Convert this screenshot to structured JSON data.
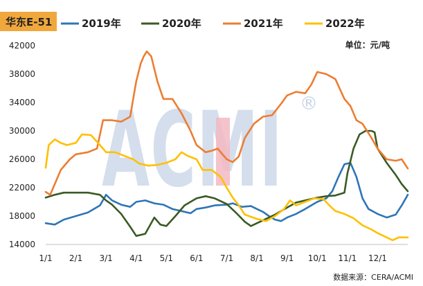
{
  "chart_data": {
    "type": "line",
    "title": "华东E-51",
    "unit_label": "单位：元/吨",
    "source_label": "数据来源：CERA/ACMI",
    "watermark": "ACMI",
    "watermark_mark": "®",
    "ylim": [
      14000,
      42000
    ],
    "yticks": [
      14000,
      18000,
      22000,
      26000,
      30000,
      34000,
      38000,
      42000
    ],
    "ytick_labels": [
      "14000",
      "18000",
      "22000",
      "26000",
      "30000",
      "34000",
      "38000",
      "42000"
    ],
    "xlim": [
      1,
      13
    ],
    "x_ticks": [
      1,
      2,
      3,
      4,
      5,
      6,
      7,
      8,
      9,
      10,
      11,
      12
    ],
    "x_tick_labels": [
      "1/1",
      "2/1",
      "3/1",
      "4/1",
      "5/1",
      "6/1",
      "7/1",
      "8/1",
      "9/1",
      "10/1",
      "11/1",
      "12/1"
    ],
    "legend_position": "top",
    "series": [
      {
        "name": "2019年",
        "color": "#2e75b6",
        "points": [
          [
            1,
            17000
          ],
          [
            1.3,
            16800
          ],
          [
            1.6,
            17500
          ],
          [
            2,
            18000
          ],
          [
            2.4,
            18500
          ],
          [
            2.8,
            19500
          ],
          [
            3,
            21000
          ],
          [
            3.2,
            20200
          ],
          [
            3.5,
            19600
          ],
          [
            3.8,
            19300
          ],
          [
            4,
            20000
          ],
          [
            4.3,
            20200
          ],
          [
            4.6,
            19800
          ],
          [
            4.9,
            19600
          ],
          [
            5.2,
            19000
          ],
          [
            5.5,
            18700
          ],
          [
            5.8,
            18400
          ],
          [
            6,
            19000
          ],
          [
            6.3,
            19200
          ],
          [
            6.6,
            19500
          ],
          [
            7,
            19600
          ],
          [
            7.2,
            19800
          ],
          [
            7.5,
            19300
          ],
          [
            7.8,
            19400
          ],
          [
            8,
            19000
          ],
          [
            8.2,
            18600
          ],
          [
            8.4,
            18000
          ],
          [
            8.6,
            17500
          ],
          [
            8.8,
            17300
          ],
          [
            9,
            17800
          ],
          [
            9.3,
            18300
          ],
          [
            9.6,
            19000
          ],
          [
            10,
            20000
          ],
          [
            10.3,
            20500
          ],
          [
            10.5,
            21500
          ],
          [
            10.7,
            23500
          ],
          [
            10.9,
            25300
          ],
          [
            11.1,
            25500
          ],
          [
            11.3,
            23500
          ],
          [
            11.5,
            20500
          ],
          [
            11.7,
            19000
          ],
          [
            12,
            18300
          ],
          [
            12.3,
            17800
          ],
          [
            12.6,
            18200
          ],
          [
            12.8,
            19500
          ],
          [
            13,
            21000
          ]
        ]
      },
      {
        "name": "2020年",
        "color": "#3a5a24",
        "points": [
          [
            1,
            20600
          ],
          [
            1.3,
            21000
          ],
          [
            1.6,
            21300
          ],
          [
            2,
            21300
          ],
          [
            2.4,
            21300
          ],
          [
            2.8,
            21000
          ],
          [
            3,
            20200
          ],
          [
            3.2,
            19600
          ],
          [
            3.5,
            18300
          ],
          [
            3.8,
            16500
          ],
          [
            4,
            15200
          ],
          [
            4.3,
            15500
          ],
          [
            4.6,
            17800
          ],
          [
            4.8,
            16800
          ],
          [
            5,
            16600
          ],
          [
            5.3,
            18000
          ],
          [
            5.6,
            19500
          ],
          [
            5.8,
            20000
          ],
          [
            6,
            20500
          ],
          [
            6.3,
            20800
          ],
          [
            6.6,
            20500
          ],
          [
            7,
            19700
          ],
          [
            7.3,
            18500
          ],
          [
            7.6,
            17200
          ],
          [
            7.8,
            16600
          ],
          [
            8,
            17000
          ],
          [
            8.3,
            17600
          ],
          [
            8.6,
            18200
          ],
          [
            9,
            19200
          ],
          [
            9.3,
            19900
          ],
          [
            9.6,
            20200
          ],
          [
            10,
            20600
          ],
          [
            10.3,
            20800
          ],
          [
            10.6,
            20900
          ],
          [
            10.9,
            21300
          ],
          [
            11,
            24000
          ],
          [
            11.2,
            27500
          ],
          [
            11.4,
            29500
          ],
          [
            11.6,
            30000
          ],
          [
            11.8,
            30000
          ],
          [
            11.9,
            29800
          ],
          [
            12,
            27500
          ],
          [
            12.3,
            25500
          ],
          [
            12.6,
            23800
          ],
          [
            12.8,
            22500
          ],
          [
            13,
            21500
          ]
        ]
      },
      {
        "name": "2021年",
        "color": "#ed7d31",
        "points": [
          [
            1,
            21400
          ],
          [
            1.15,
            21000
          ],
          [
            1.3,
            22500
          ],
          [
            1.5,
            24500
          ],
          [
            1.8,
            26000
          ],
          [
            2,
            26700
          ],
          [
            2.4,
            27000
          ],
          [
            2.7,
            27500
          ],
          [
            2.9,
            31500
          ],
          [
            3.2,
            31500
          ],
          [
            3.5,
            31300
          ],
          [
            3.8,
            32000
          ],
          [
            3.9,
            34500
          ],
          [
            4,
            37000
          ],
          [
            4.15,
            39500
          ],
          [
            4.25,
            40500
          ],
          [
            4.35,
            41200
          ],
          [
            4.5,
            40500
          ],
          [
            4.7,
            37000
          ],
          [
            4.9,
            34500
          ],
          [
            5.2,
            34500
          ],
          [
            5.5,
            32500
          ],
          [
            5.8,
            30000
          ],
          [
            6,
            28000
          ],
          [
            6.3,
            27000
          ],
          [
            6.5,
            27200
          ],
          [
            6.7,
            27500
          ],
          [
            7,
            26000
          ],
          [
            7.2,
            25600
          ],
          [
            7.4,
            26400
          ],
          [
            7.6,
            29000
          ],
          [
            7.9,
            31000
          ],
          [
            8.2,
            32000
          ],
          [
            8.5,
            32200
          ],
          [
            8.8,
            33800
          ],
          [
            9,
            35000
          ],
          [
            9.3,
            35500
          ],
          [
            9.6,
            35300
          ],
          [
            9.8,
            36500
          ],
          [
            10,
            38300
          ],
          [
            10.3,
            38000
          ],
          [
            10.6,
            37300
          ],
          [
            10.9,
            34500
          ],
          [
            11.1,
            33500
          ],
          [
            11.3,
            31500
          ],
          [
            11.5,
            31000
          ],
          [
            11.8,
            29000
          ],
          [
            12,
            27500
          ],
          [
            12.3,
            26000
          ],
          [
            12.6,
            25800
          ],
          [
            12.8,
            26000
          ],
          [
            13,
            24700
          ]
        ]
      },
      {
        "name": "2022年",
        "color": "#ffc000",
        "points": [
          [
            1,
            24800
          ],
          [
            1.1,
            28000
          ],
          [
            1.3,
            28800
          ],
          [
            1.5,
            28300
          ],
          [
            1.7,
            28000
          ],
          [
            2,
            28300
          ],
          [
            2.2,
            29500
          ],
          [
            2.5,
            29400
          ],
          [
            2.8,
            28000
          ],
          [
            3,
            27000
          ],
          [
            3.3,
            27000
          ],
          [
            3.6,
            26500
          ],
          [
            3.9,
            26000
          ],
          [
            4.1,
            25400
          ],
          [
            4.4,
            25100
          ],
          [
            4.7,
            25200
          ],
          [
            5,
            25500
          ],
          [
            5.3,
            26000
          ],
          [
            5.5,
            27000
          ],
          [
            5.7,
            26500
          ],
          [
            6,
            26000
          ],
          [
            6.2,
            24500
          ],
          [
            6.5,
            24500
          ],
          [
            6.8,
            23500
          ],
          [
            7,
            22000
          ],
          [
            7.2,
            20600
          ],
          [
            7.4,
            19500
          ],
          [
            7.6,
            18200
          ],
          [
            7.8,
            17900
          ],
          [
            8,
            17600
          ],
          [
            8.3,
            17300
          ],
          [
            8.6,
            18000
          ],
          [
            8.9,
            19000
          ],
          [
            9.1,
            20200
          ],
          [
            9.3,
            19500
          ],
          [
            9.6,
            20000
          ],
          [
            9.9,
            20500
          ],
          [
            10.2,
            20400
          ],
          [
            10.4,
            19500
          ],
          [
            10.6,
            18700
          ],
          [
            10.9,
            18300
          ],
          [
            11.2,
            17700
          ],
          [
            11.5,
            16700
          ],
          [
            11.8,
            16100
          ],
          [
            12,
            15600
          ],
          [
            12.3,
            15000
          ],
          [
            12.5,
            14600
          ],
          [
            12.7,
            15000
          ],
          [
            13,
            15000
          ]
        ]
      }
    ]
  }
}
